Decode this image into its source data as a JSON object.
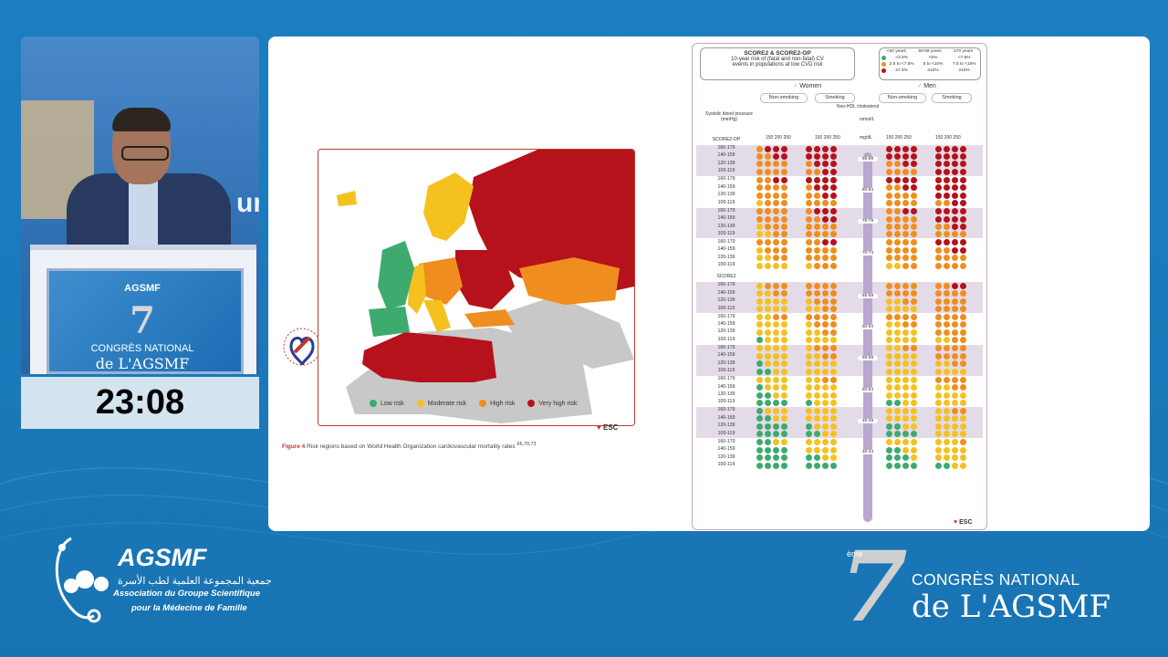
{
  "colors": {
    "background": "#1c7ec0",
    "risk_low": "#3daa6e",
    "risk_moderate": "#f4c11f",
    "risk_high": "#ef8e1f",
    "risk_very_high": "#b5121b",
    "no_data": "#c8c8c8"
  },
  "video": {
    "backdrop_text": "un",
    "podium_brand": "AGSMF",
    "podium_seven": "7",
    "podium_line1": "CONGRÈS NATIONAL",
    "podium_line2": "de L'AGSMF"
  },
  "timer": "23:08",
  "map": {
    "legend": [
      {
        "label": "Low risk",
        "color_key": "risk_low"
      },
      {
        "label": "Moderate risk",
        "color_key": "risk_moderate"
      },
      {
        "label": "High risk",
        "color_key": "risk_high"
      },
      {
        "label": "Very high risk",
        "color_key": "risk_very_high"
      }
    ],
    "esc_label": "ESC",
    "caption_prefix": "Figure 4",
    "caption_text": "Risk regions based on World Health Organization cardiovascular mortality rates",
    "caption_refs": "66,70,73"
  },
  "score": {
    "title_line1": "SCORE2 & SCORE2-OP",
    "title_line2": "10-year risk of (fatal and non-fatal) CV",
    "title_line3": "events in populations at low CVD risk",
    "key_headers": [
      "<50 years",
      "50-69 years",
      "≥70 years"
    ],
    "key_rows": [
      [
        "<2.5%",
        "<5%",
        "<7.5%"
      ],
      [
        "2.5 to <7.5%",
        "5 to <10%",
        "7.5 to <15%"
      ],
      [
        "≥7.5%",
        "≥10%",
        "≥15%"
      ]
    ],
    "women_label": "Women",
    "men_label": "Men",
    "non_smoking": "Non-smoking",
    "smoking": "Smoking",
    "nonhdl_label": "Non-HDL cholesterol",
    "sbp_label": "Systolic blood pressure (mmHg)",
    "mmol_label": "mmol/L",
    "mgdl_label": "mg/dL",
    "col_mmol": [
      "3.0-3.9",
      "4.0-4.9",
      "5.0-5.9",
      "6.0-6.9"
    ],
    "col_mgdl": "150 200 250",
    "section_op": "SCORE2-OP",
    "section_2": "SCORE2",
    "sbp_rows": [
      "160-179",
      "140-159",
      "120-139",
      "100-119"
    ],
    "age_groups": [
      "85-89",
      "80-84",
      "75-79",
      "70-74",
      "65-69",
      "60-64",
      "55-59",
      "50-54",
      "45-49",
      "40-44"
    ],
    "esc_label": "ESC"
  },
  "footer": {
    "org_name": "AGSMF",
    "org_arabic": "جمعية المجموعة العلمية لطب الأسرة",
    "org_french_1": "Association du Groupe Scientifique",
    "org_french_2": "pour la Médecine de Famille",
    "event_number": "7",
    "event_suffix": "ème",
    "event_line1": "CONGRÈS NATIONAL",
    "event_line2": "de L'AGSMF"
  }
}
